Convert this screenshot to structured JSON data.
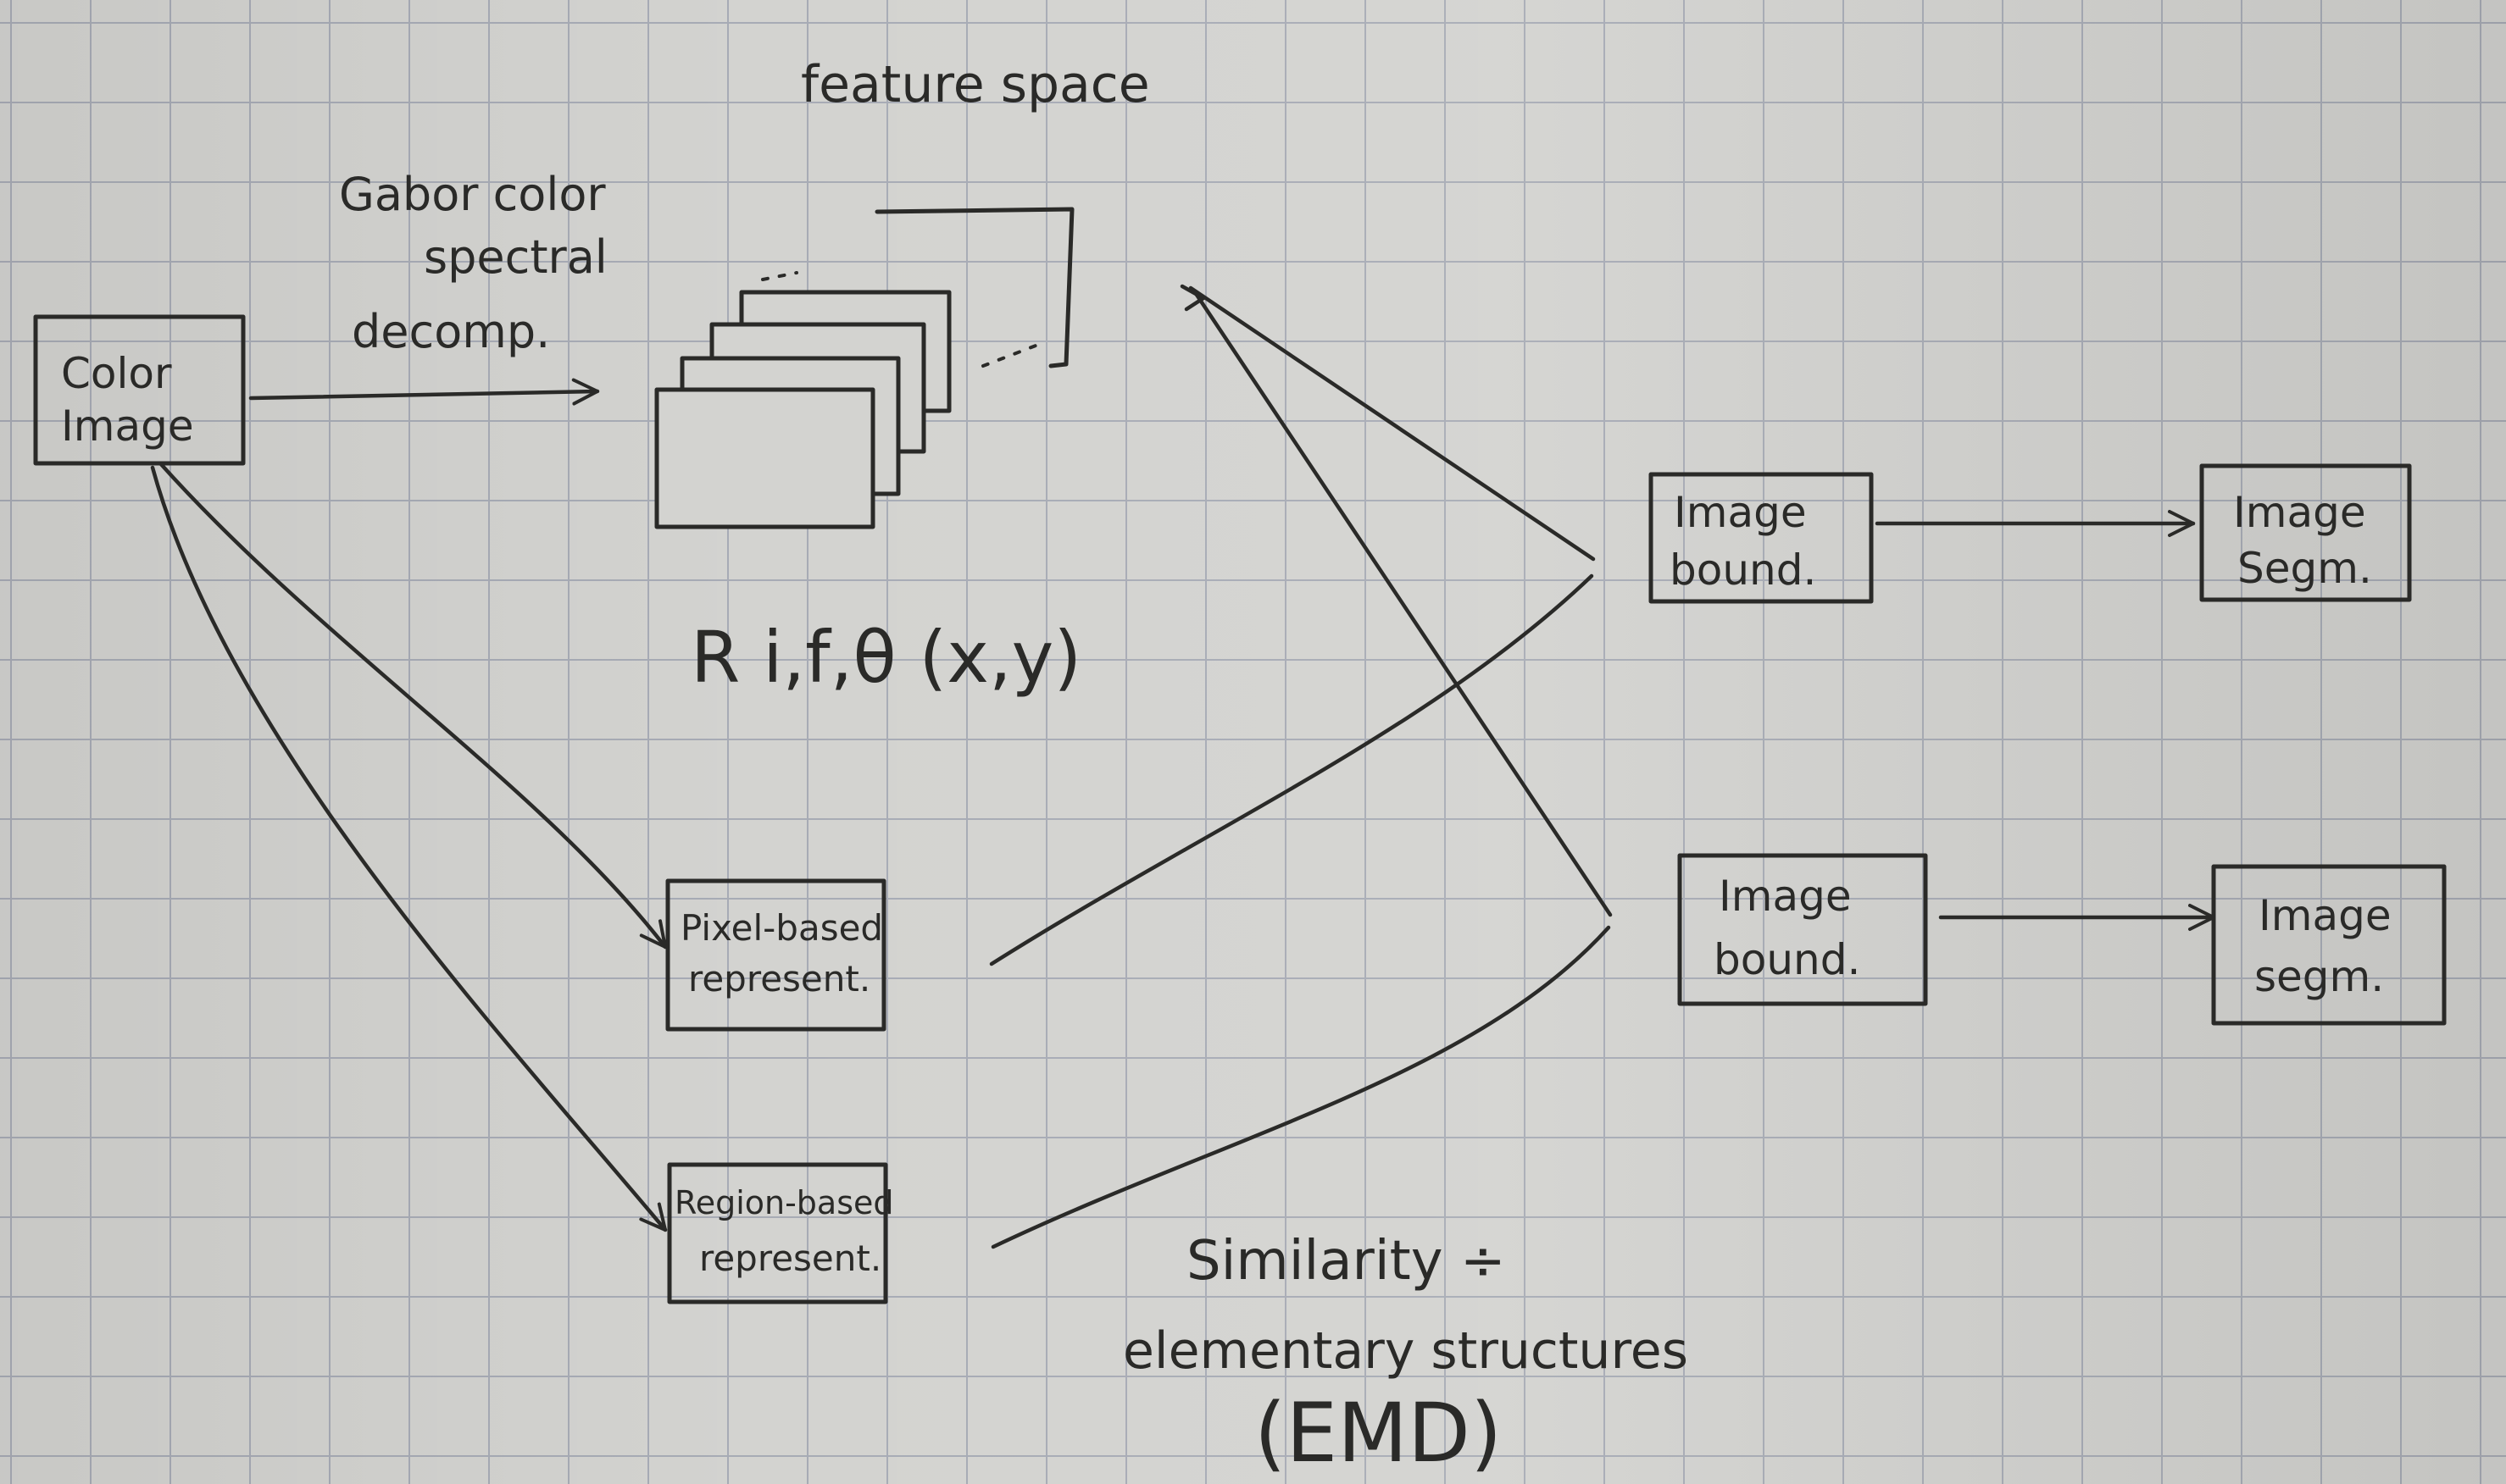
{
  "labels": {
    "color_image": [
      "Color",
      "Image"
    ],
    "feature_space": "feature space",
    "gabor": [
      "Gabor color",
      "spectral",
      "decomp."
    ],
    "response": "R i,f,θ (x,y)",
    "pixel_based": [
      "Pixel-based",
      "represent."
    ],
    "region_based": [
      "Region-based",
      "represent."
    ],
    "bound_1": [
      "Image",
      "bound."
    ],
    "bound_2": [
      "Image",
      "bound."
    ],
    "segm_1": [
      "Image",
      "Segm."
    ],
    "segm_2": [
      "Image",
      "segm."
    ],
    "similarity": [
      "Similarity ÷",
      "elementary structures",
      "(EMD)"
    ]
  },
  "colors": {
    "ink": "#2a2a28",
    "paper": "#d3d3d0",
    "grid": "#a7abb5"
  }
}
